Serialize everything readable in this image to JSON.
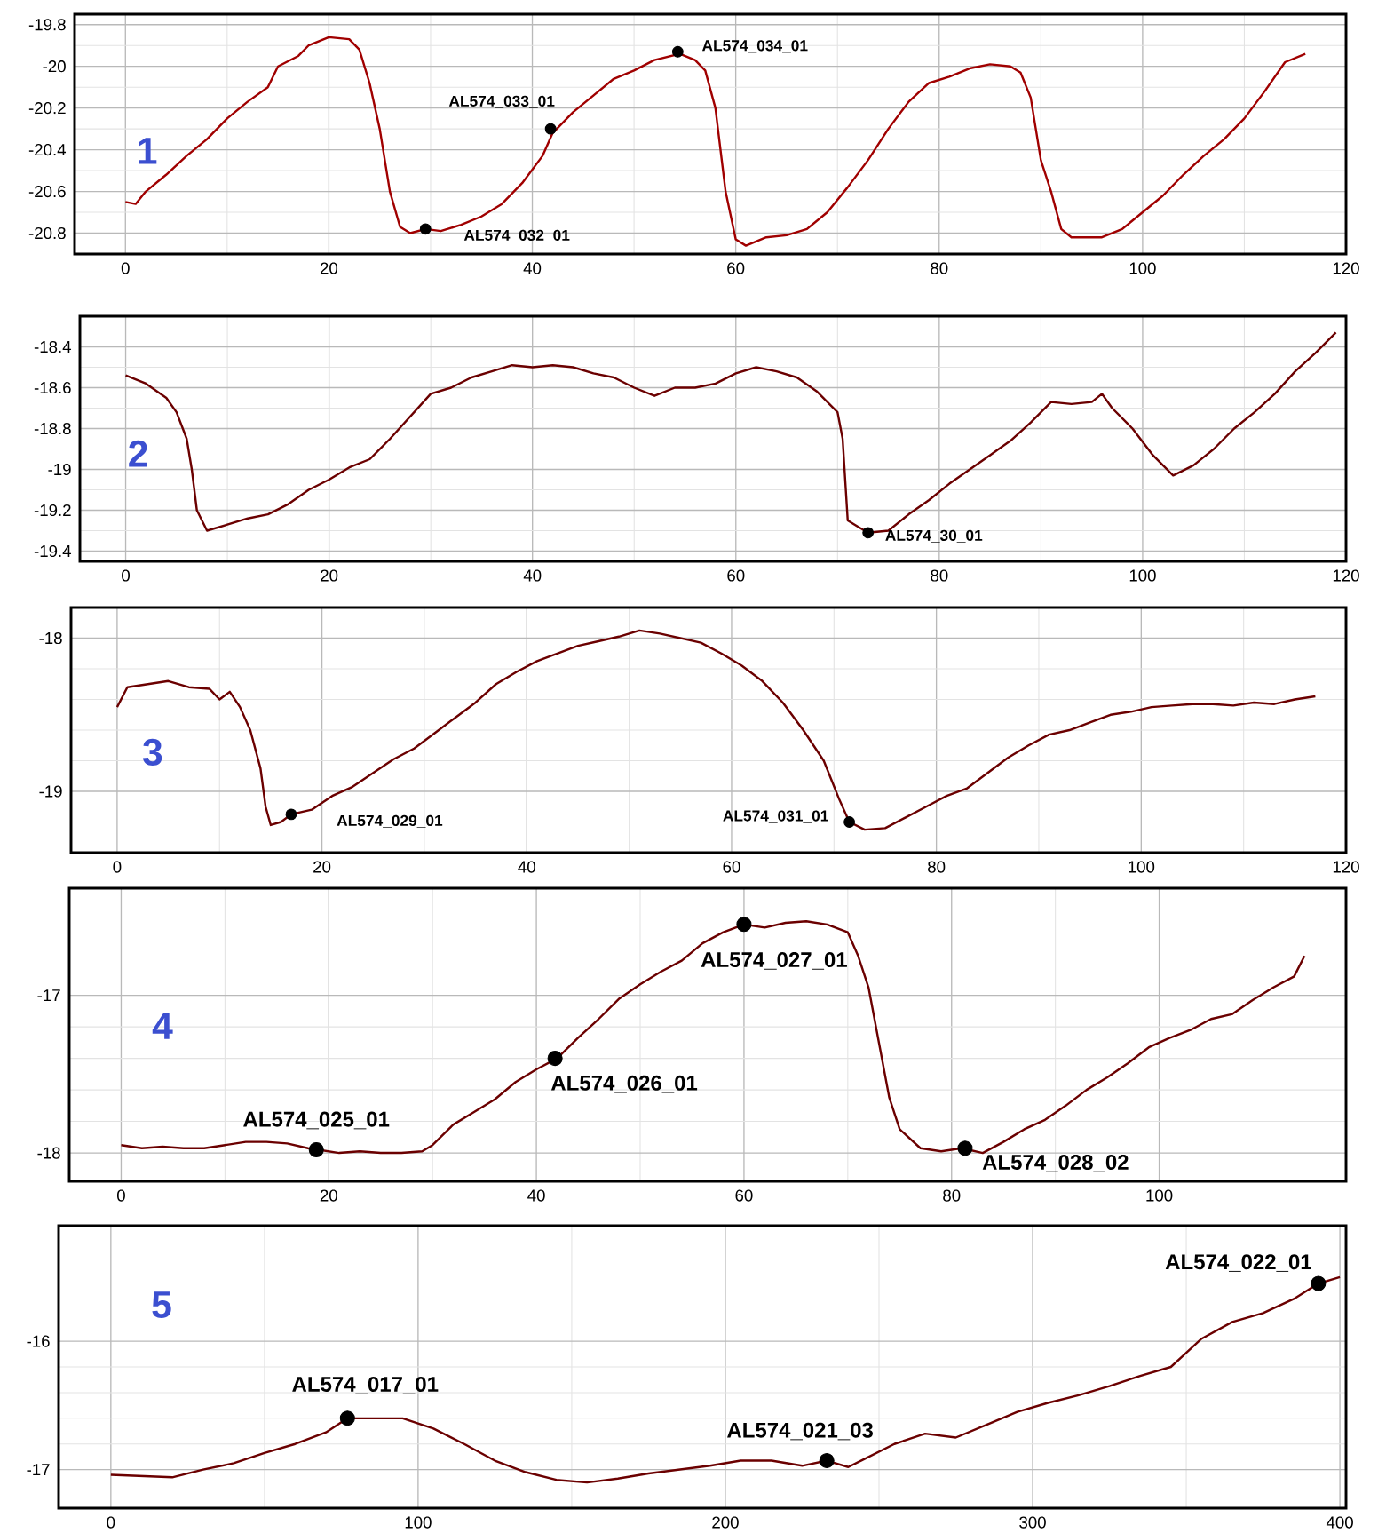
{
  "chart_data": [
    {
      "type": "line",
      "title": "1",
      "xlim": [
        -5,
        120
      ],
      "ylim": [
        -20.9,
        -19.75
      ],
      "xticks": [
        0,
        20,
        40,
        60,
        80,
        100,
        120
      ],
      "yticks": [
        -19.8,
        -20,
        -20.2,
        -20.4,
        -20.6,
        -20.8
      ],
      "grid": true,
      "series": [
        {
          "color": "#a00000",
          "x": [
            0,
            1,
            2,
            4,
            6,
            8,
            10,
            12,
            14,
            15,
            17,
            18,
            20,
            22,
            23,
            24,
            25,
            26,
            27,
            28,
            29.5,
            31,
            33,
            35,
            37,
            39,
            41,
            42,
            44,
            46,
            48,
            50,
            52,
            54.5,
            56,
            57,
            58,
            59,
            60,
            61,
            63,
            65,
            67,
            69,
            71,
            73,
            75,
            77,
            79,
            81,
            83,
            85,
            87,
            88,
            89,
            90,
            91,
            92,
            93,
            96,
            98,
            100,
            102,
            104,
            106,
            108,
            110,
            112,
            114,
            116
          ],
          "values": [
            -20.65,
            -20.66,
            -20.6,
            -20.52,
            -20.43,
            -20.35,
            -20.25,
            -20.17,
            -20.1,
            -20.0,
            -19.95,
            -19.9,
            -19.86,
            -19.87,
            -19.92,
            -20.08,
            -20.3,
            -20.6,
            -20.77,
            -20.8,
            -20.78,
            -20.79,
            -20.76,
            -20.72,
            -20.66,
            -20.56,
            -20.43,
            -20.32,
            -20.22,
            -20.14,
            -20.06,
            -20.02,
            -19.97,
            -19.94,
            -19.97,
            -20.02,
            -20.2,
            -20.6,
            -20.83,
            -20.86,
            -20.82,
            -20.81,
            -20.78,
            -20.7,
            -20.58,
            -20.45,
            -20.3,
            -20.17,
            -20.08,
            -20.05,
            -20.01,
            -19.99,
            -20.0,
            -20.03,
            -20.15,
            -20.45,
            -20.6,
            -20.78,
            -20.82,
            -20.82,
            -20.78,
            -20.7,
            -20.62,
            -20.52,
            -20.43,
            -20.35,
            -20.25,
            -20.12,
            -19.98,
            -19.94
          ]
        },
        {
          "type": "scatter",
          "color": "#000000",
          "marker": "circle",
          "x": [
            29.5,
            41.8,
            54.3
          ],
          "values": [
            -20.78,
            -20.3,
            -19.93
          ]
        }
      ],
      "annotations": [
        {
          "text": "AL574_032_01",
          "x": 29.5,
          "y": -20.78
        },
        {
          "text": "AL574_033_01",
          "x": 41.8,
          "y": -20.3
        },
        {
          "text": "AL574_034_01",
          "x": 54.3,
          "y": -19.93
        }
      ]
    },
    {
      "type": "line",
      "title": "2",
      "xlim": [
        -4.5,
        120
      ],
      "ylim": [
        -19.45,
        -18.25
      ],
      "xticks": [
        0,
        20,
        40,
        60,
        80,
        100,
        120
      ],
      "yticks": [
        -18.4,
        -18.6,
        -18.8,
        -19,
        -19.2,
        -19.4
      ],
      "grid": true,
      "series": [
        {
          "color": "#6b0000",
          "x": [
            0,
            2,
            4,
            5,
            6,
            6.5,
            7,
            8,
            10,
            12,
            14,
            16,
            18,
            20,
            22,
            24,
            26,
            28,
            30,
            32,
            34,
            36,
            38,
            40,
            42,
            44,
            46,
            48,
            50,
            52,
            54,
            56,
            58,
            60,
            62,
            64,
            66,
            68,
            70,
            70.5,
            71,
            72,
            73,
            75,
            77,
            79,
            81,
            83,
            85,
            87,
            89,
            91,
            93,
            95,
            96,
            97,
            99,
            101,
            103,
            105,
            107,
            109,
            111,
            113,
            115,
            117,
            119
          ],
          "values": [
            -18.54,
            -18.58,
            -18.65,
            -18.72,
            -18.85,
            -19.0,
            -19.2,
            -19.3,
            -19.27,
            -19.24,
            -19.22,
            -19.17,
            -19.1,
            -19.05,
            -18.99,
            -18.95,
            -18.85,
            -18.74,
            -18.63,
            -18.6,
            -18.55,
            -18.52,
            -18.49,
            -18.5,
            -18.49,
            -18.5,
            -18.53,
            -18.55,
            -18.6,
            -18.64,
            -18.6,
            -18.6,
            -18.58,
            -18.53,
            -18.5,
            -18.52,
            -18.55,
            -18.62,
            -18.72,
            -18.85,
            -19.25,
            -19.28,
            -19.31,
            -19.3,
            -19.22,
            -19.15,
            -19.07,
            -19.0,
            -18.93,
            -18.86,
            -18.77,
            -18.67,
            -18.68,
            -18.67,
            -18.63,
            -18.7,
            -18.8,
            -18.93,
            -19.03,
            -18.98,
            -18.9,
            -18.8,
            -18.72,
            -18.63,
            -18.52,
            -18.43,
            -18.33
          ]
        },
        {
          "type": "scatter",
          "color": "#000000",
          "marker": "circle",
          "x": [
            73
          ],
          "values": [
            -19.31
          ]
        }
      ],
      "annotations": [
        {
          "text": "AL574_30_01",
          "x": 73,
          "y": -19.31
        }
      ]
    },
    {
      "type": "line",
      "title": "3",
      "xlim": [
        -4.5,
        120
      ],
      "ylim": [
        -19.4,
        -17.8
      ],
      "xticks": [
        0,
        20,
        40,
        60,
        80,
        100,
        120
      ],
      "yticks": [
        -18,
        -19
      ],
      "grid": true,
      "series": [
        {
          "color": "#6b0000",
          "x": [
            0,
            1,
            3,
            5,
            7,
            9,
            10,
            11,
            12,
            13,
            14,
            14.5,
            15,
            16,
            17,
            19,
            21,
            23,
            25,
            27,
            29,
            31,
            33,
            35,
            37,
            39,
            41,
            43,
            45,
            47,
            49,
            51,
            53,
            55,
            57,
            59,
            61,
            63,
            65,
            67,
            69,
            70.5,
            71.5,
            73,
            75,
            77,
            79,
            81,
            83,
            85,
            87,
            89,
            91,
            93,
            95,
            97,
            99,
            101,
            103,
            105,
            107,
            109,
            111,
            113,
            115,
            117
          ],
          "values": [
            -18.45,
            -18.32,
            -18.3,
            -18.28,
            -18.32,
            -18.33,
            -18.4,
            -18.35,
            -18.45,
            -18.6,
            -18.85,
            -19.1,
            -19.22,
            -19.2,
            -19.15,
            -19.12,
            -19.03,
            -18.97,
            -18.88,
            -18.79,
            -18.72,
            -18.62,
            -18.52,
            -18.42,
            -18.3,
            -18.22,
            -18.15,
            -18.1,
            -18.05,
            -18.02,
            -17.99,
            -17.95,
            -17.97,
            -18.0,
            -18.03,
            -18.1,
            -18.18,
            -18.28,
            -18.42,
            -18.6,
            -18.8,
            -19.05,
            -19.2,
            -19.25,
            -19.24,
            -19.17,
            -19.1,
            -19.03,
            -18.98,
            -18.88,
            -18.78,
            -18.7,
            -18.63,
            -18.6,
            -18.55,
            -18.5,
            -18.48,
            -18.45,
            -18.44,
            -18.43,
            -18.43,
            -18.44,
            -18.42,
            -18.43,
            -18.4,
            -18.38
          ]
        },
        {
          "type": "scatter",
          "color": "#000000",
          "marker": "circle",
          "x": [
            17,
            71.5
          ],
          "values": [
            -19.15,
            -19.2
          ]
        }
      ],
      "annotations": [
        {
          "text": "AL574_029_01",
          "x": 17,
          "y": -19.15
        },
        {
          "text": "AL574_031_01",
          "x": 71.5,
          "y": -19.2
        }
      ]
    },
    {
      "type": "line",
      "title": "4",
      "xlim": [
        -5,
        118
      ],
      "ylim": [
        -18.18,
        -16.32
      ],
      "xticks": [
        0,
        20,
        40,
        60,
        80,
        100
      ],
      "yticks": [
        -17,
        -18
      ],
      "grid": true,
      "series": [
        {
          "color": "#6b0000",
          "x": [
            0,
            2,
            4,
            6,
            8,
            10,
            12,
            14,
            16,
            18,
            19,
            21,
            23,
            25,
            27,
            29,
            30,
            32,
            34,
            36,
            38,
            40,
            42,
            44,
            46,
            48,
            50,
            52,
            54,
            56,
            58,
            60,
            62,
            64,
            66,
            68,
            70,
            71,
            72,
            73,
            74,
            75,
            77,
            79,
            81,
            83,
            85,
            87,
            89,
            91,
            93,
            95,
            97,
            99,
            101,
            103,
            105,
            107,
            109,
            111,
            113,
            114
          ],
          "values": [
            -17.95,
            -17.97,
            -17.96,
            -17.97,
            -17.97,
            -17.95,
            -17.93,
            -17.93,
            -17.94,
            -17.97,
            -17.98,
            -18.0,
            -17.99,
            -18.0,
            -18.0,
            -17.99,
            -17.95,
            -17.82,
            -17.74,
            -17.66,
            -17.55,
            -17.47,
            -17.4,
            -17.27,
            -17.15,
            -17.02,
            -16.93,
            -16.85,
            -16.78,
            -16.67,
            -16.6,
            -16.55,
            -16.57,
            -16.54,
            -16.53,
            -16.55,
            -16.6,
            -16.75,
            -16.95,
            -17.3,
            -17.65,
            -17.85,
            -17.97,
            -17.99,
            -17.97,
            -18.0,
            -17.93,
            -17.85,
            -17.79,
            -17.7,
            -17.6,
            -17.52,
            -17.43,
            -17.33,
            -17.27,
            -17.22,
            -17.15,
            -17.12,
            -17.03,
            -16.95,
            -16.88,
            -16.75
          ]
        },
        {
          "type": "scatter",
          "color": "#000000",
          "marker": "circle",
          "x": [
            18.8,
            41.8,
            60,
            81.3
          ],
          "values": [
            -17.98,
            -17.4,
            -16.55,
            -17.97
          ]
        }
      ],
      "annotations": [
        {
          "text": "AL574_025_01",
          "x": 18.8,
          "y": -17.98
        },
        {
          "text": "AL574_026_01",
          "x": 41.8,
          "y": -17.4
        },
        {
          "text": "AL574_027_01",
          "x": 60,
          "y": -16.55
        },
        {
          "text": "AL574_028_02",
          "x": 81.3,
          "y": -17.97
        }
      ]
    },
    {
      "type": "line",
      "title": "5",
      "xlim": [
        -17,
        402
      ],
      "ylim": [
        -17.3,
        -15.1
      ],
      "xticks": [
        0,
        100,
        200,
        300,
        400
      ],
      "yticks": [
        -16,
        -17
      ],
      "grid": true,
      "series": [
        {
          "color": "#6b0000",
          "x": [
            0,
            10,
            20,
            30,
            40,
            50,
            60,
            70,
            77,
            85,
            95,
            105,
            115,
            125,
            135,
            145,
            155,
            165,
            175,
            185,
            195,
            205,
            215,
            225,
            233,
            240,
            245,
            255,
            265,
            275,
            285,
            295,
            305,
            315,
            325,
            335,
            345,
            355,
            365,
            375,
            385,
            393,
            400
          ],
          "values": [
            -17.04,
            -17.05,
            -17.06,
            -17.0,
            -16.95,
            -16.87,
            -16.8,
            -16.71,
            -16.6,
            -16.6,
            -16.6,
            -16.68,
            -16.8,
            -16.93,
            -17.02,
            -17.08,
            -17.1,
            -17.07,
            -17.03,
            -17.0,
            -16.97,
            -16.93,
            -16.93,
            -16.97,
            -16.93,
            -16.98,
            -16.92,
            -16.8,
            -16.72,
            -16.75,
            -16.65,
            -16.55,
            -16.48,
            -16.42,
            -16.35,
            -16.27,
            -16.2,
            -15.98,
            -15.85,
            -15.78,
            -15.67,
            -15.55,
            -15.5
          ]
        },
        {
          "type": "scatter",
          "color": "#000000",
          "marker": "circle",
          "x": [
            77,
            233,
            393
          ],
          "values": [
            -16.6,
            -16.93,
            -15.55
          ]
        }
      ],
      "annotations": [
        {
          "text": "AL574_017_01",
          "x": 77,
          "y": -16.6
        },
        {
          "text": "AL574_021_03",
          "x": 233,
          "y": -16.93
        },
        {
          "text": "AL574_022_01",
          "x": 393,
          "y": -15.55
        }
      ]
    }
  ]
}
